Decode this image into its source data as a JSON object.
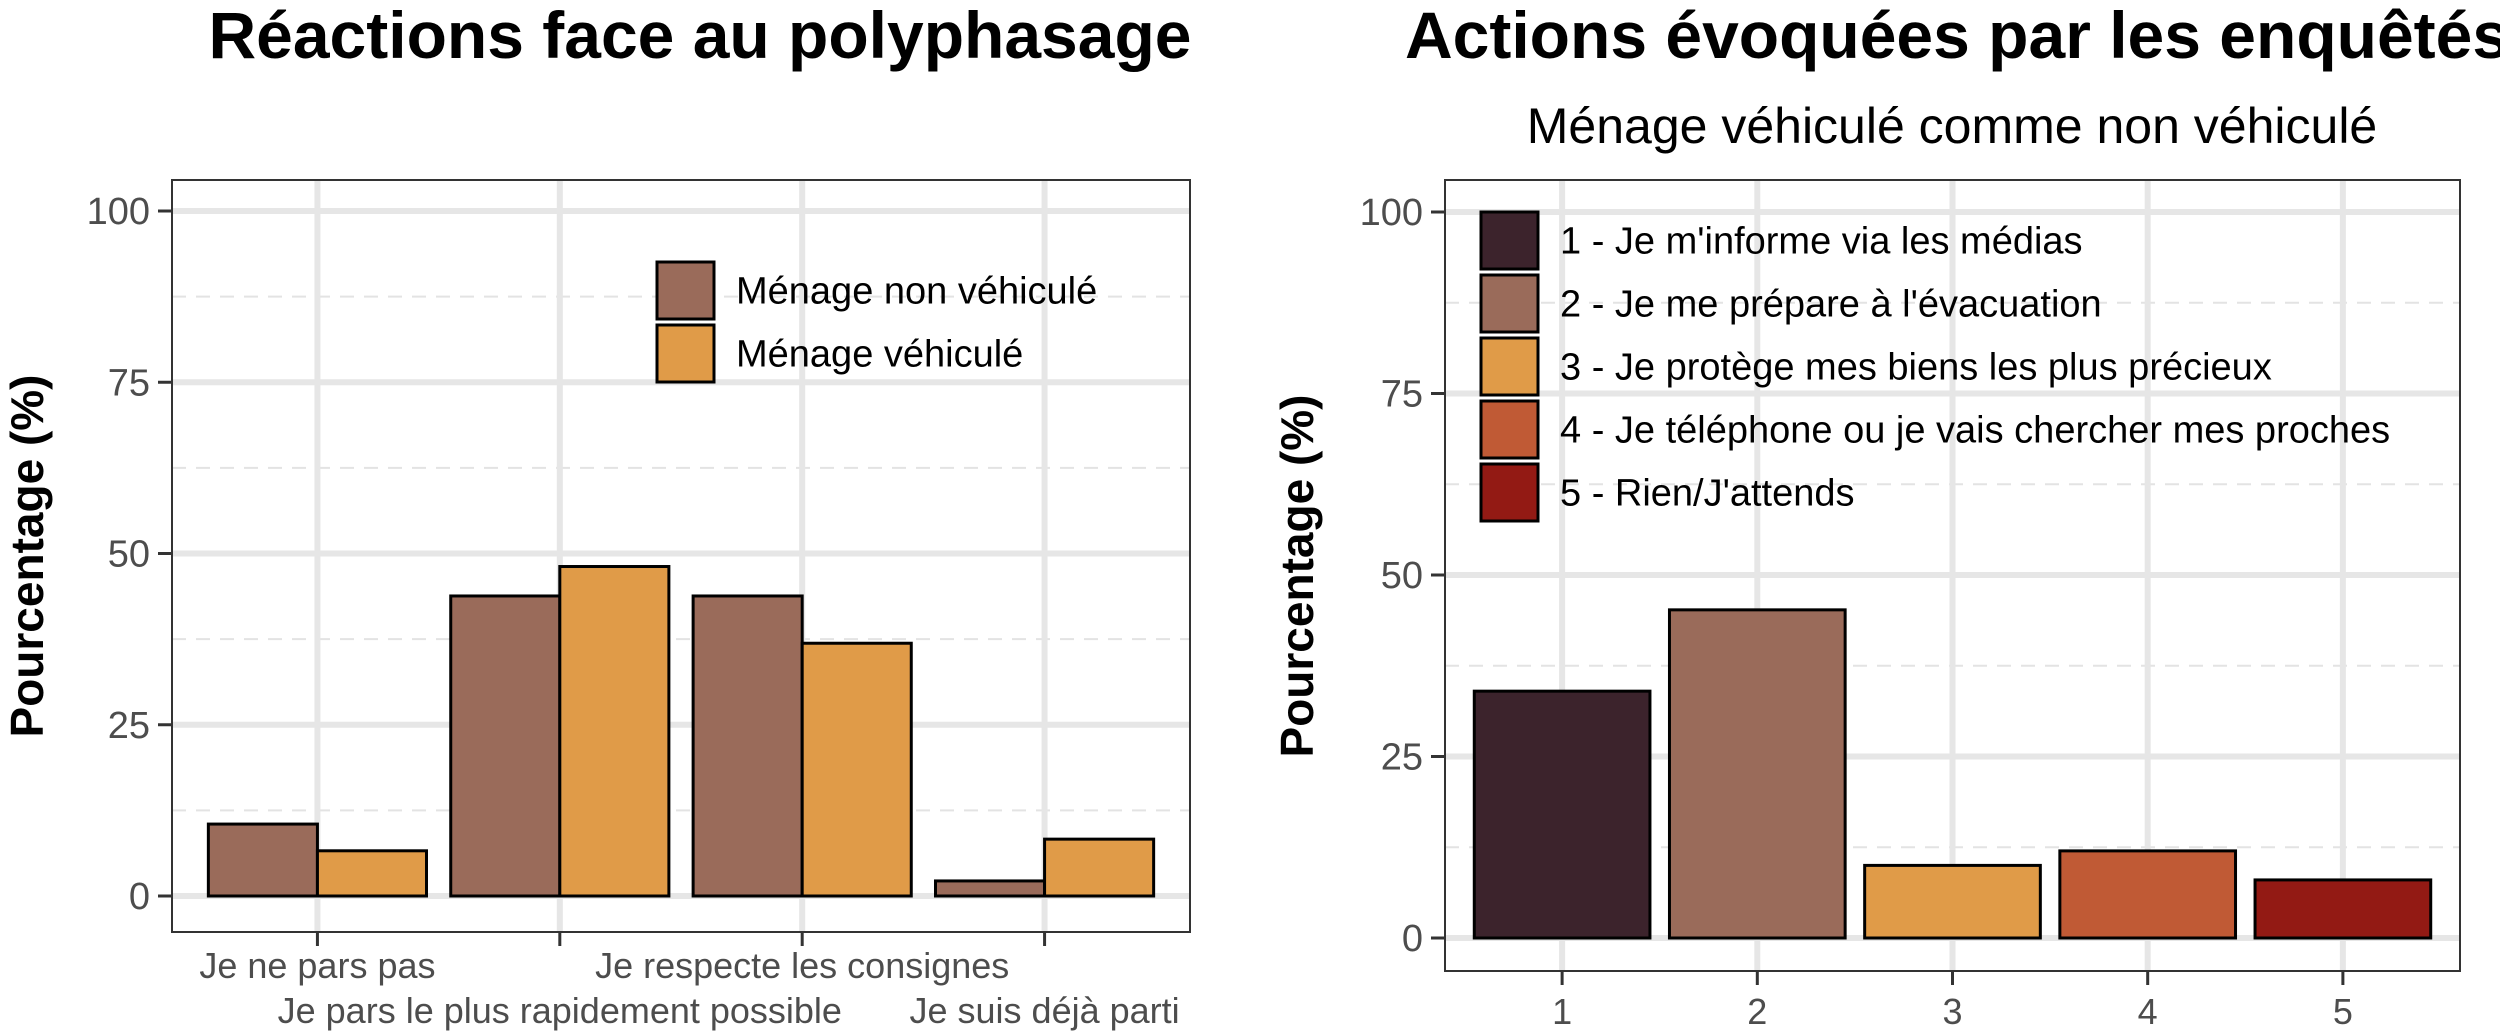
{
  "chart_data": [
    {
      "type": "bar",
      "title": "Réactions face au polyphasage",
      "ylabel": "Pourcentage (%)",
      "ylim": [
        0,
        100
      ],
      "yticks": [
        "0",
        "25",
        "50",
        "75",
        "100"
      ],
      "categories": [
        "Je ne pars pas",
        "Je pars le plus rapidement possible",
        "Je respecte les consignes",
        "Je suis déjà parti"
      ],
      "series": [
        {
          "name": "Ménage non véhiculé",
          "color": "#9a6b5a",
          "values": [
            10.5,
            43.8,
            43.8,
            2.2
          ]
        },
        {
          "name": "Ménage véhiculé",
          "color": "#e09b48",
          "values": [
            6.6,
            48.1,
            36.9,
            8.3
          ]
        }
      ],
      "grid": true,
      "legend": "top-right"
    },
    {
      "type": "bar",
      "title": "Actions évoquées par les enquêtés",
      "subtitle": "Ménage véhiculé comme non véhiculé",
      "ylabel": "Pourcentage (%)",
      "ylim": [
        0,
        100
      ],
      "yticks": [
        "0",
        "25",
        "50",
        "75",
        "100"
      ],
      "categories": [
        "1",
        "2",
        "3",
        "4",
        "5"
      ],
      "values": [
        34,
        45.2,
        10,
        12,
        8
      ],
      "colors": [
        "#3c232c",
        "#9a6b5a",
        "#e09b48",
        "#c05a35",
        "#931a14"
      ],
      "legend_entries": [
        "1 - Je m'informe via les médias",
        "2 - Je me prépare à l'évacuation",
        "3 - Je protège mes biens les plus précieux",
        "4 - Je téléphone ou je vais chercher mes proches",
        "5 - Rien/J'attends"
      ],
      "grid": true,
      "legend": "top-left"
    }
  ]
}
